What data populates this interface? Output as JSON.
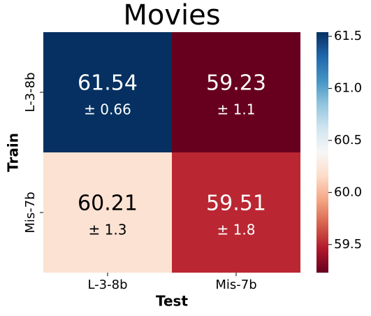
{
  "chart_data": {
    "type": "heatmap",
    "title": "Movies",
    "x_label": "Test",
    "y_label": "Train",
    "x_categories": [
      "L-3-8b",
      "Mis-7b"
    ],
    "y_categories": [
      "L-3-8b",
      "Mis-7b"
    ],
    "values": [
      [
        61.54,
        59.23
      ],
      [
        60.21,
        59.51
      ]
    ],
    "error_labels": [
      [
        "± 0.66",
        "± 1.1"
      ],
      [
        "± 1.3",
        "± 1.8"
      ]
    ],
    "colormap": "RdBu",
    "colors": [
      "#67001f",
      "#b2182b",
      "#d6604d",
      "#f4a582",
      "#fddbc7",
      "#f7f7f7",
      "#d1e5f0",
      "#92c5de",
      "#4393c3",
      "#2166ac",
      "#053061"
    ],
    "clim": [
      59.23,
      61.54
    ],
    "colorbar_ticks": [
      59.5,
      {
        "value": 60.0,
        "label": "60.0"
      },
      60.5,
      {
        "value": 61.0,
        "label": "61.0"
      },
      61.5
    ]
  }
}
